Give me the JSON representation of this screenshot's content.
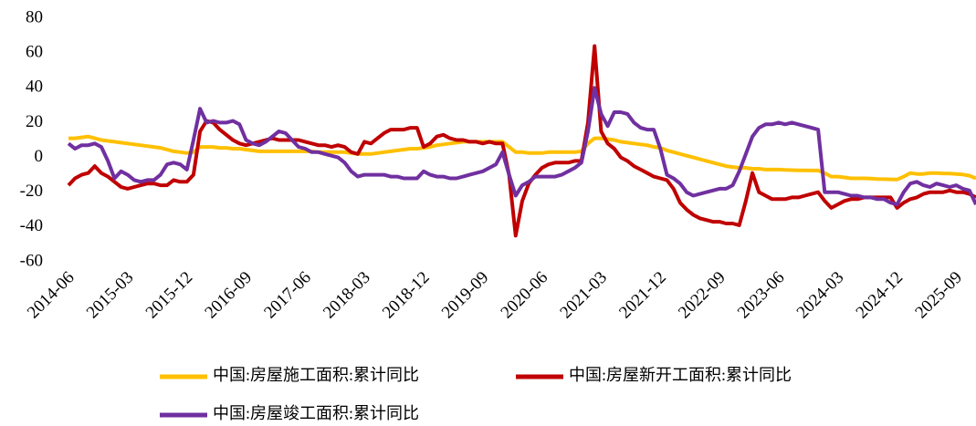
{
  "chart_data": {
    "type": "line",
    "categories": [
      "2014-06",
      null,
      null,
      null,
      null,
      null,
      null,
      null,
      null,
      "2015-03",
      null,
      null,
      null,
      null,
      null,
      null,
      null,
      null,
      "2015-12",
      null,
      null,
      null,
      null,
      null,
      null,
      null,
      null,
      "2016-09",
      null,
      null,
      null,
      null,
      null,
      null,
      null,
      null,
      "2017-06",
      null,
      null,
      null,
      null,
      null,
      null,
      null,
      null,
      "2018-03",
      null,
      null,
      null,
      null,
      null,
      null,
      null,
      null,
      "2018-12",
      null,
      null,
      null,
      null,
      null,
      null,
      null,
      null,
      "2019-09",
      null,
      null,
      null,
      null,
      null,
      null,
      null,
      null,
      "2020-06",
      null,
      null,
      null,
      null,
      null,
      null,
      null,
      null,
      "2021-03",
      null,
      null,
      null,
      null,
      null,
      null,
      null,
      null,
      "2021-12",
      null,
      null,
      null,
      null,
      null,
      null,
      null,
      null,
      "2022-09",
      null,
      null,
      null,
      null,
      null,
      null,
      null,
      null,
      "2023-06",
      null,
      null,
      null,
      null,
      null,
      null,
      null,
      null,
      "2024-03",
      null,
      null,
      null,
      null,
      null,
      null,
      null,
      null,
      "2024-12",
      null,
      null,
      null,
      null,
      null,
      null,
      null,
      null,
      "2025-09",
      null,
      null,
      null
    ],
    "series": [
      {
        "name": "中国:房屋施工面积:累计同比",
        "color": "#ffc000",
        "values": [
          11,
          11,
          11.5,
          12,
          11,
          10,
          9.5,
          9,
          8.5,
          8,
          7.5,
          7,
          6.5,
          6,
          5.5,
          4.5,
          3.5,
          3,
          2.5,
          3,
          6,
          6,
          6,
          5.5,
          5.5,
          5,
          5,
          4.5,
          4,
          3.5,
          3.5,
          3.5,
          3.5,
          3.5,
          3.5,
          3.5,
          3.5,
          3.5,
          3,
          3,
          3,
          3,
          3,
          2.5,
          2,
          2,
          2,
          2.5,
          3,
          3.5,
          4,
          4.5,
          5,
          5,
          5.5,
          6,
          7,
          7.5,
          8,
          8.5,
          9,
          9,
          9,
          9,
          9,
          9,
          9,
          6,
          3,
          3,
          2.5,
          2.5,
          2.5,
          3,
          3,
          3,
          3,
          3,
          3.5,
          8,
          11,
          11,
          10.5,
          10,
          9,
          8.5,
          8,
          7.5,
          7,
          6,
          5.5,
          4,
          3,
          2,
          1,
          0,
          -1,
          -2,
          -3,
          -4,
          -5,
          -5.5,
          -6,
          -6,
          -6.5,
          -6.5,
          -7,
          -7,
          -7,
          -7.2,
          -7.3,
          -7.4,
          -7.4,
          -7.5,
          -7.5,
          -9,
          -11,
          -11,
          -11.5,
          -12,
          -12,
          -12,
          -12.2,
          -12.4,
          -12.5,
          -12.6,
          -12.7,
          -11,
          -9,
          -9.5,
          -9.5,
          -9,
          -9,
          -9.2,
          -9.3,
          -9.5,
          -9.8,
          -10.5,
          -12
        ]
      },
      {
        "name": "中国:房屋新开工面积:累计同比",
        "color": "#c00000",
        "values": [
          -16,
          -12,
          -10,
          -9,
          -5,
          -9,
          -11,
          -14,
          -17,
          -18,
          -17,
          -16,
          -15,
          -15,
          -16,
          -16,
          -13,
          -14,
          -14,
          -10,
          15,
          21,
          20,
          16,
          13,
          10,
          8,
          7,
          8,
          9,
          10,
          11,
          10,
          10,
          10,
          10,
          9,
          8,
          7,
          7,
          6,
          7,
          6,
          3,
          2,
          9,
          8,
          11,
          14,
          16,
          16,
          16,
          17,
          17,
          6,
          8,
          12,
          13,
          11,
          10,
          10,
          9,
          9,
          8,
          9,
          8,
          8,
          -10,
          -45,
          -25,
          -15,
          -10,
          -6,
          -4,
          -3,
          -3,
          -3,
          -2,
          -2,
          20,
          64,
          15,
          8,
          5,
          0,
          -2,
          -5,
          -7,
          -9,
          -11,
          -12,
          -13,
          -18,
          -26,
          -30,
          -33,
          -35,
          -36,
          -37,
          -37,
          -38,
          -38,
          -39,
          -25,
          -9,
          -20,
          -22,
          -24,
          -24,
          -24,
          -23,
          -23,
          -22,
          -21,
          -20,
          -25,
          -29,
          -27,
          -25,
          -24,
          -24,
          -23,
          -23,
          -23,
          -23,
          -23,
          -29,
          -26,
          -24,
          -23,
          -21,
          -20,
          -20,
          -20,
          -19,
          -20,
          -20,
          -21,
          -23
        ]
      },
      {
        "name": "中国:房屋竣工面积:累计同比",
        "color": "#7030a0",
        "values": [
          8,
          5,
          7,
          7,
          8,
          6,
          -2,
          -12,
          -8,
          -10,
          -13,
          -14,
          -13,
          -13,
          -10,
          -4,
          -3,
          -4,
          -7,
          10,
          28,
          20,
          21,
          20,
          20,
          21,
          19,
          10,
          8,
          7,
          9,
          12,
          15,
          14,
          10,
          6,
          5,
          3,
          3,
          2,
          1,
          0,
          -3,
          -8,
          -11,
          -10,
          -10,
          -10,
          -10,
          -11,
          -11,
          -12,
          -12,
          -12,
          -8,
          -10,
          -11,
          -11,
          -12,
          -12,
          -11,
          -10,
          -9,
          -8,
          -6,
          -4,
          3,
          -10,
          -22,
          -16,
          -14,
          -11,
          -11,
          -11,
          -11,
          -10,
          -8,
          -6,
          -3,
          15,
          40,
          25,
          18,
          26,
          26,
          25,
          20,
          17,
          16,
          16,
          5,
          -10,
          -12,
          -15,
          -20,
          -22,
          -21,
          -20,
          -19,
          -18,
          -18,
          -16,
          -8,
          2,
          12,
          17,
          19,
          19,
          20,
          19,
          20,
          19,
          18,
          17,
          16,
          -20,
          -20,
          -20,
          -21,
          -22,
          -22,
          -23,
          -23,
          -24,
          -24,
          -26,
          -27,
          -20,
          -15,
          -14,
          -16,
          -17,
          -15,
          -16,
          -17,
          -16,
          -18,
          -19,
          -27
        ]
      }
    ],
    "ylim": [
      -60,
      80
    ],
    "yticks": [
      -60,
      -40,
      -20,
      0,
      20,
      40,
      60,
      80
    ]
  }
}
